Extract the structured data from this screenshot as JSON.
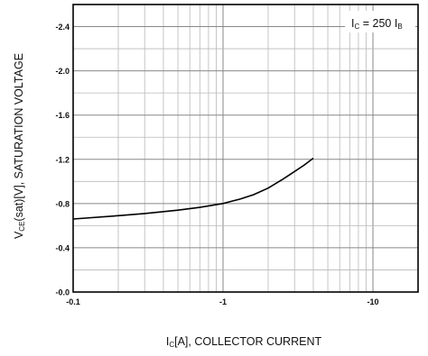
{
  "chart_data": {
    "type": "line",
    "xscale": "log",
    "xlim": [
      0.1,
      20
    ],
    "ylim": [
      0,
      -2.6
    ],
    "x_ticks": [
      0.1,
      1,
      10
    ],
    "x_tick_labels": [
      "-0.1",
      "-1",
      "-10"
    ],
    "y_ticks": [
      0,
      -0.4,
      -0.8,
      -1.2,
      -1.6,
      -2.0,
      -2.4
    ],
    "y_tick_labels": [
      "-0.0",
      "-0.4",
      "-0.8",
      "-1.2",
      "-1.6",
      "-2.0",
      "-2.4"
    ],
    "grid": true,
    "xlabel": {
      "main": "I",
      "sub": "C",
      "rest": "[A], COLLECTOR CURRENT"
    },
    "ylabel": {
      "main": "V",
      "sub": "CE",
      "rest": "(sat)[V], SATURATION VOLTAGE"
    },
    "annotation": {
      "a": "I",
      "a_sub": "C",
      "mid": " = 250 I",
      "b_sub": "B",
      "position": "top-right"
    },
    "series": [
      {
        "x": [
          0.1,
          0.2,
          0.3,
          0.5,
          0.7,
          1.0,
          1.3,
          1.6,
          2.0,
          2.5,
          3.0,
          3.5,
          4.0
        ],
        "y": [
          -0.66,
          -0.69,
          -0.71,
          -0.74,
          -0.765,
          -0.8,
          -0.84,
          -0.88,
          -0.94,
          -1.02,
          -1.09,
          -1.15,
          -1.21
        ]
      }
    ]
  }
}
